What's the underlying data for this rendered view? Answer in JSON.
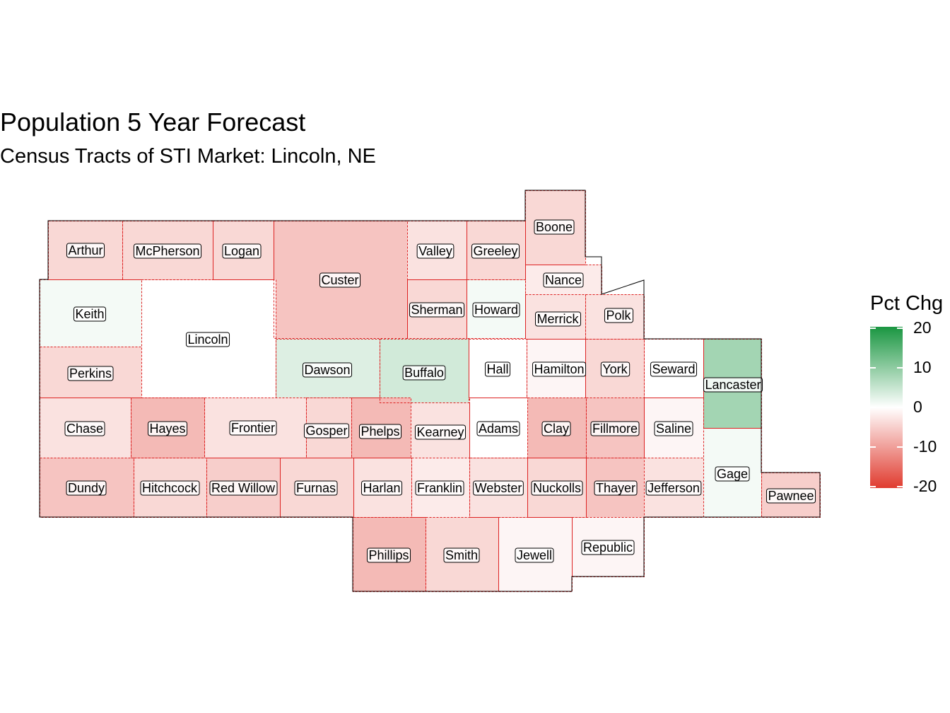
{
  "title": "Population 5 Year Forecast",
  "subtitle": "Census Tracts of STI Market: Lincoln, NE",
  "legend": {
    "title": "Pct Chg",
    "ticks": [
      "20",
      "10",
      "0",
      "-10",
      "-20"
    ],
    "colors": {
      "high": "#1a9641",
      "mid": "#ffffff",
      "low": "#e03b2f"
    }
  },
  "counties": [
    {
      "name": "Arthur",
      "pct_chg": -4
    },
    {
      "name": "McPherson",
      "pct_chg": -4
    },
    {
      "name": "Logan",
      "pct_chg": -4
    },
    {
      "name": "Custer",
      "pct_chg": -6
    },
    {
      "name": "Valley",
      "pct_chg": -3
    },
    {
      "name": "Greeley",
      "pct_chg": -4
    },
    {
      "name": "Boone",
      "pct_chg": -4
    },
    {
      "name": "Nance",
      "pct_chg": -2
    },
    {
      "name": "Keith",
      "pct_chg": 1
    },
    {
      "name": "Lincoln",
      "pct_chg": 0
    },
    {
      "name": "Sherman",
      "pct_chg": -4
    },
    {
      "name": "Howard",
      "pct_chg": 1
    },
    {
      "name": "Merrick",
      "pct_chg": -3
    },
    {
      "name": "Polk",
      "pct_chg": -3
    },
    {
      "name": "Perkins",
      "pct_chg": -4
    },
    {
      "name": "Dawson",
      "pct_chg": 3
    },
    {
      "name": "Buffalo",
      "pct_chg": 4
    },
    {
      "name": "Hall",
      "pct_chg": 0
    },
    {
      "name": "Hamilton",
      "pct_chg": -1
    },
    {
      "name": "York",
      "pct_chg": -4
    },
    {
      "name": "Seward",
      "pct_chg": 0
    },
    {
      "name": "Lancaster",
      "pct_chg": 8
    },
    {
      "name": "Chase",
      "pct_chg": -3
    },
    {
      "name": "Hayes",
      "pct_chg": -7
    },
    {
      "name": "Frontier",
      "pct_chg": -3
    },
    {
      "name": "Gosper",
      "pct_chg": -4
    },
    {
      "name": "Phelps",
      "pct_chg": -7
    },
    {
      "name": "Kearney",
      "pct_chg": -3
    },
    {
      "name": "Adams",
      "pct_chg": 0
    },
    {
      "name": "Clay",
      "pct_chg": -7
    },
    {
      "name": "Fillmore",
      "pct_chg": -6
    },
    {
      "name": "Saline",
      "pct_chg": -1
    },
    {
      "name": "Gage",
      "pct_chg": 1
    },
    {
      "name": "Dundy",
      "pct_chg": -6
    },
    {
      "name": "Hitchcock",
      "pct_chg": -4
    },
    {
      "name": "Red Willow",
      "pct_chg": -5
    },
    {
      "name": "Furnas",
      "pct_chg": -4
    },
    {
      "name": "Harlan",
      "pct_chg": -3
    },
    {
      "name": "Franklin",
      "pct_chg": -2
    },
    {
      "name": "Webster",
      "pct_chg": -3
    },
    {
      "name": "Nuckolls",
      "pct_chg": -4
    },
    {
      "name": "Thayer",
      "pct_chg": -6
    },
    {
      "name": "Jefferson",
      "pct_chg": -3
    },
    {
      "name": "Pawnee",
      "pct_chg": -5
    },
    {
      "name": "Phillips",
      "pct_chg": -7
    },
    {
      "name": "Smith",
      "pct_chg": -4
    },
    {
      "name": "Jewell",
      "pct_chg": -1
    },
    {
      "name": "Republic",
      "pct_chg": -1
    }
  ]
}
